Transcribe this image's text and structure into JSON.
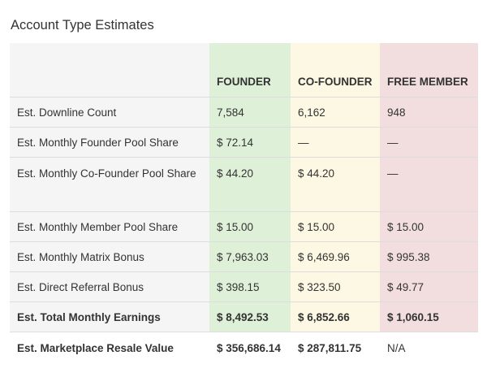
{
  "title": "Account Type Estimates",
  "columns": [
    "FOUNDER",
    "CO-FOUNDER",
    "FREE MEMBER"
  ],
  "rows": [
    {
      "label": "Est. Downline Count",
      "founder": "7,584",
      "cofounder": "6,162",
      "free": "948"
    },
    {
      "label": "Est. Monthly Founder Pool Share",
      "founder": "$ 72.14",
      "cofounder": "—",
      "free": "—"
    },
    {
      "label": "Est. Monthly Co-Founder Pool Share",
      "founder": "$ 44.20",
      "cofounder": "$ 44.20",
      "free": "—"
    },
    {
      "label": "Est. Monthly Member Pool Share",
      "founder": "$ 15.00",
      "cofounder": "$ 15.00",
      "free": "$ 15.00"
    },
    {
      "label": "Est. Monthly Matrix Bonus",
      "founder": "$ 7,963.03",
      "cofounder": "$ 6,469.96",
      "free": "$ 995.38"
    },
    {
      "label": "Est. Direct Referral Bonus",
      "founder": "$ 398.15",
      "cofounder": "$ 323.50",
      "free": "$ 49.77"
    },
    {
      "label": "Est. Total Monthly Earnings",
      "founder": "$ 8,492.53",
      "cofounder": "$ 6,852.66",
      "free": "$ 1,060.15"
    },
    {
      "label": "Est. Marketplace Resale Value",
      "founder": "$ 356,686.14",
      "cofounder": "$ 287,811.75",
      "free": "N/A"
    }
  ],
  "colors": {
    "founder_bg": "#dff0d8",
    "cofounder_bg": "#fcf8e3",
    "free_bg": "#f2dede",
    "label_bg": "#f5f5f5"
  }
}
